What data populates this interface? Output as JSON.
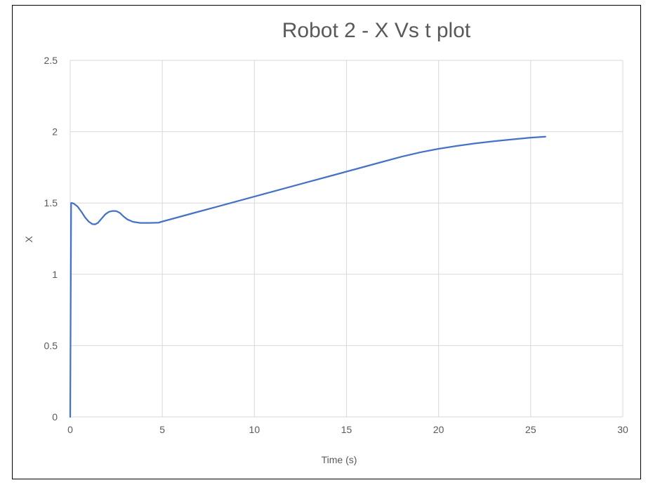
{
  "chart_data": {
    "type": "line",
    "title": "Robot 2 - X Vs t plot",
    "xlabel": "Time (s)",
    "ylabel": "X",
    "xlim": [
      0,
      30
    ],
    "ylim": [
      0,
      2.5
    ],
    "xticks": [
      0,
      5,
      10,
      15,
      20,
      25,
      30
    ],
    "yticks": [
      0,
      0.5,
      1,
      1.5,
      2,
      2.5
    ],
    "xtick_labels": [
      "0",
      "5",
      "10",
      "15",
      "20",
      "25",
      "30"
    ],
    "ytick_labels": [
      "0",
      "0.5",
      "1",
      "1.5",
      "2",
      "2.5"
    ],
    "grid": true,
    "legend": "none",
    "series": [
      {
        "color": "#4472c4",
        "x": [
          0,
          0.05,
          0.1,
          0.2,
          0.4,
          0.6,
          0.8,
          1.0,
          1.2,
          1.35,
          1.5,
          1.7,
          1.9,
          2.1,
          2.3,
          2.5,
          2.7,
          2.9,
          3.1,
          3.4,
          3.8,
          4.3,
          4.8,
          5,
          6,
          7,
          8,
          9,
          10,
          11,
          12,
          13,
          14,
          15,
          16,
          17,
          18,
          19,
          20,
          21,
          22,
          23,
          24,
          25,
          25.8
        ],
        "y": [
          0,
          1.5,
          1.5,
          1.495,
          1.475,
          1.44,
          1.4,
          1.37,
          1.352,
          1.35,
          1.36,
          1.39,
          1.42,
          1.438,
          1.444,
          1.443,
          1.43,
          1.405,
          1.385,
          1.368,
          1.36,
          1.36,
          1.362,
          1.37,
          1.405,
          1.44,
          1.475,
          1.51,
          1.545,
          1.58,
          1.615,
          1.65,
          1.685,
          1.72,
          1.755,
          1.79,
          1.825,
          1.855,
          1.88,
          1.9,
          1.918,
          1.933,
          1.946,
          1.958,
          1.965
        ]
      }
    ]
  }
}
